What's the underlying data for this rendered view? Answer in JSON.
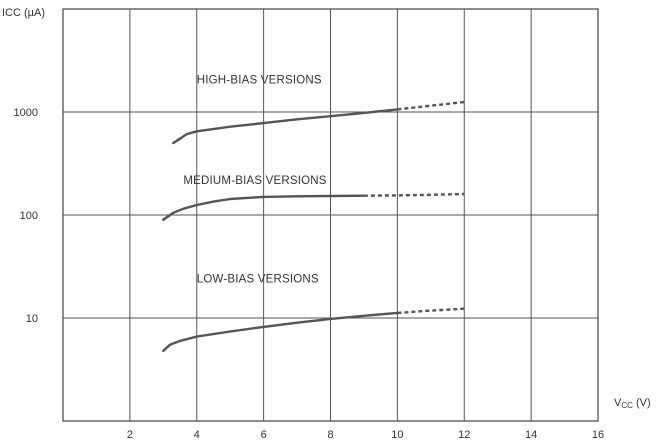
{
  "chart_data": {
    "type": "line",
    "ylabel": "ICC (µA)",
    "xlabel_main": "V",
    "xlabel_sub": "CC",
    "xlabel_unit": " (V)",
    "xlim": [
      0,
      16
    ],
    "ylim": [
      1,
      10000
    ],
    "yscale": "log",
    "grid": true,
    "x_ticks": [
      2,
      4,
      6,
      8,
      10,
      12,
      14,
      16
    ],
    "x_tick_labels": [
      "2",
      "4",
      "6",
      "8",
      "10",
      "12",
      "14",
      "16"
    ],
    "y_ticks": [
      10,
      100,
      1000
    ],
    "y_tick_labels": [
      "10",
      "100",
      "1000"
    ],
    "series_color": "#555555",
    "series": [
      {
        "name": "HIGH-BIAS VERSIONS",
        "x": [
          3.3,
          3.5,
          3.7,
          4.0,
          5.0,
          6.0,
          7.0,
          8.0,
          9.0,
          10.0,
          11.0,
          12.0
        ],
        "y": [
          500,
          550,
          610,
          650,
          720,
          780,
          850,
          910,
          980,
          1060,
          1150,
          1250
        ],
        "dashed_from_x": 10.0
      },
      {
        "name": "MEDIUM-BIAS VERSIONS",
        "x": [
          3.0,
          3.3,
          3.6,
          4.0,
          4.5,
          5.0,
          6.0,
          7.0,
          8.0,
          9.0,
          10.0,
          11.0,
          12.0
        ],
        "y": [
          90,
          105,
          115,
          125,
          135,
          143,
          150,
          152,
          153,
          154,
          155,
          157,
          160
        ],
        "dashed_from_x": 9.0
      },
      {
        "name": "LOW-BIAS VERSIONS",
        "x": [
          3.0,
          3.2,
          3.5,
          4.0,
          5.0,
          6.0,
          7.0,
          8.0,
          9.0,
          10.0,
          11.0,
          12.0
        ],
        "y": [
          4.8,
          5.5,
          6.0,
          6.6,
          7.4,
          8.2,
          9.0,
          9.8,
          10.5,
          11.2,
          11.8,
          12.3
        ],
        "dashed_from_x": 10.0
      }
    ]
  }
}
